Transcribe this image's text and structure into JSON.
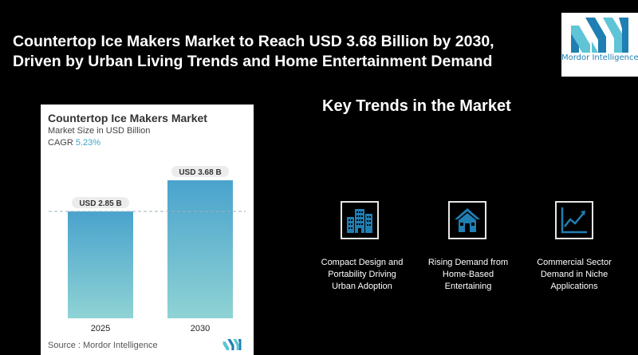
{
  "headline": {
    "line1": "Countertop Ice Makers Market to Reach USD 3.68 Billion by 2030,",
    "line2": "Driven by Urban Living Trends and Home Entertainment Demand"
  },
  "logo": {
    "text": "Mordor Intelligence",
    "color": "#1f7fb3"
  },
  "card": {
    "title": "Countertop Ice Makers Market",
    "subtitle": "Market Size in USD Billion",
    "cagr_label": "CAGR",
    "cagr_value": "5.23%",
    "source": "Source :  Mordor Intelligence"
  },
  "chart_data": {
    "type": "bar",
    "categories": [
      "2025",
      "2030"
    ],
    "values": [
      2.85,
      3.68
    ],
    "data_labels": [
      "USD 2.85 B",
      "USD 3.68 B"
    ],
    "title": "Countertop Ice Makers Market",
    "ylabel": "Market Size in USD Billion",
    "reference_line": 2.85,
    "bar_gradient": [
      "#4aa3cd",
      "#8fd3d4"
    ]
  },
  "trends": {
    "title": "Key Trends in the Market",
    "items": [
      {
        "icon": "buildings-icon",
        "lines": [
          "Compact Design and",
          "Portability Driving",
          "Urban Adoption"
        ]
      },
      {
        "icon": "house-icon",
        "lines": [
          "Rising Demand from",
          "Home-Based",
          "Entertaining"
        ]
      },
      {
        "icon": "line-chart-icon",
        "lines": [
          "Commercial Sector",
          "Demand in Niche",
          "Applications"
        ]
      }
    ],
    "icon_color": "#1f7fb3"
  }
}
